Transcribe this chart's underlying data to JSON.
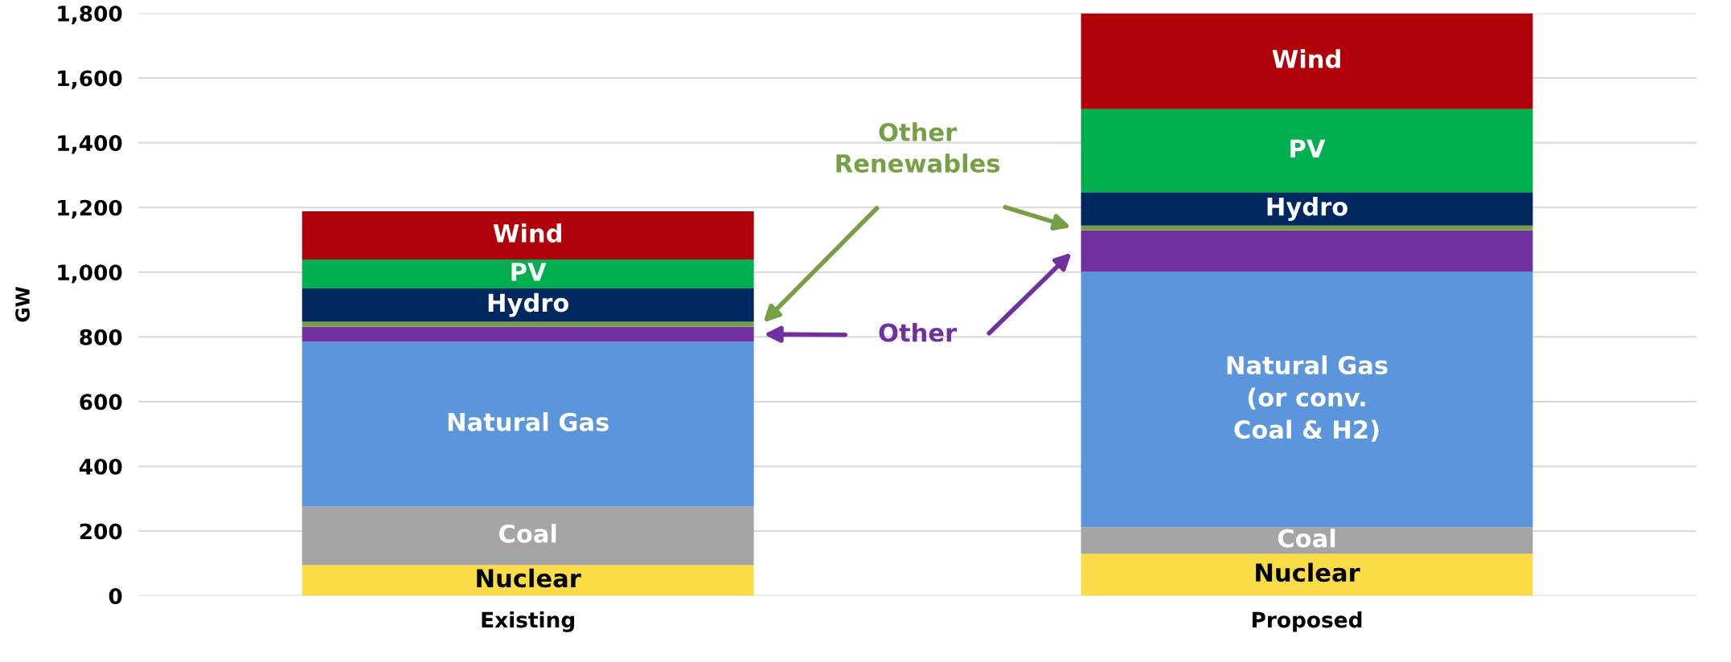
{
  "chart_data": {
    "type": "bar",
    "stacked": true,
    "ylabel": "GW",
    "categories": [
      "Existing",
      "Proposed"
    ],
    "series": [
      {
        "name": "Nuclear",
        "color": "#fadc46",
        "values": [
          95,
          130
        ]
      },
      {
        "name": "Coal",
        "color": "#a5a5a5",
        "values": [
          181,
          82
        ]
      },
      {
        "name": "Natural Gas",
        "color": "#5b96dc",
        "values": [
          509,
          789
        ]
      },
      {
        "name": "Other",
        "color": "#7030a0",
        "values": [
          46,
          128
        ]
      },
      {
        "name": "Other Renewables",
        "color": "#76a045",
        "values": [
          16,
          15
        ]
      },
      {
        "name": "Hydro",
        "color": "#002860",
        "values": [
          103,
          103
        ]
      },
      {
        "name": "PV",
        "color": "#00b050",
        "values": [
          89,
          257
        ]
      },
      {
        "name": "Wind",
        "color": "#b00009",
        "values": [
          149,
          296
        ]
      }
    ],
    "annotations": [
      "(or conv.\nCoal & H2)"
    ],
    "ylim": [
      0,
      1800
    ],
    "yticks": [
      {
        "value": 0,
        "label": "0"
      },
      {
        "value": 200,
        "label": "200"
      },
      {
        "value": 400,
        "label": "400"
      },
      {
        "value": 600,
        "label": "600"
      },
      {
        "value": 800,
        "label": "800"
      },
      {
        "value": 1000,
        "label": "1,000"
      },
      {
        "value": 1200,
        "label": "1,200"
      },
      {
        "value": 1400,
        "label": "1,400"
      },
      {
        "value": 1600,
        "label": "1,600"
      },
      {
        "value": 1800,
        "label": "1,800"
      }
    ],
    "grid": "y"
  }
}
